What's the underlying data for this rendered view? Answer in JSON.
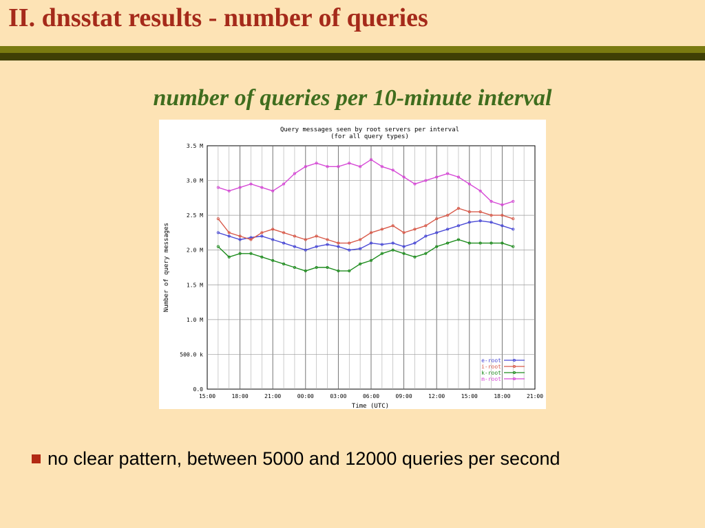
{
  "slide": {
    "title": "II. dnsstat results - number of queries",
    "subtitle": "number of queries per 10-minute interval",
    "bullet": "no clear pattern, between 5000 and 12000 queries per second"
  },
  "colors": {
    "title": "#a52a1a",
    "subtitle": "#3f6d1e",
    "background": "#fde3b5",
    "bullet": "#b22a14"
  },
  "chart_data": {
    "type": "line",
    "title": "Query messages seen by root servers per interval",
    "subtitle": "(for all query types)",
    "xlabel": "Time (UTC)",
    "ylabel": "Number of query messages",
    "x_ticks": [
      "15:00",
      "18:00",
      "21:00",
      "00:00",
      "03:00",
      "06:00",
      "09:00",
      "12:00",
      "15:00",
      "18:00",
      "21:00"
    ],
    "y_ticks": [
      "0.0",
      "500.0 k",
      "1.0 M",
      "1.5 M",
      "2.0 M",
      "2.5 M",
      "3.0 M",
      "3.5 M"
    ],
    "x_unit": "hours since 15:00 UTC",
    "xlim": [
      0,
      30
    ],
    "ylim": [
      0,
      3500000
    ],
    "grid": true,
    "legend_position": "bottom-right",
    "series": [
      {
        "name": "e-root",
        "color": "#4a4ad6",
        "x": [
          1,
          2,
          3,
          4,
          5,
          6,
          7,
          8,
          9,
          10,
          11,
          12,
          13,
          14,
          15,
          16,
          17,
          18,
          19,
          20,
          21,
          22,
          23,
          24,
          25,
          26,
          27,
          28
        ],
        "values": [
          2250000,
          2200000,
          2150000,
          2180000,
          2200000,
          2150000,
          2100000,
          2050000,
          2000000,
          2050000,
          2080000,
          2050000,
          2000000,
          2020000,
          2100000,
          2080000,
          2100000,
          2050000,
          2100000,
          2200000,
          2250000,
          2300000,
          2350000,
          2400000,
          2420000,
          2400000,
          2350000,
          2300000
        ]
      },
      {
        "name": "i-root",
        "color": "#d85a4a",
        "x": [
          1,
          2,
          3,
          4,
          5,
          6,
          7,
          8,
          9,
          10,
          11,
          12,
          13,
          14,
          15,
          16,
          17,
          18,
          19,
          20,
          21,
          22,
          23,
          24,
          25,
          26,
          27,
          28
        ],
        "values": [
          2450000,
          2250000,
          2200000,
          2150000,
          2250000,
          2300000,
          2250000,
          2200000,
          2150000,
          2200000,
          2150000,
          2100000,
          2100000,
          2150000,
          2250000,
          2300000,
          2350000,
          2250000,
          2300000,
          2350000,
          2450000,
          2500000,
          2600000,
          2550000,
          2550000,
          2500000,
          2500000,
          2450000
        ]
      },
      {
        "name": "k-root",
        "color": "#1e8c1e",
        "x": [
          1,
          2,
          3,
          4,
          5,
          6,
          7,
          8,
          9,
          10,
          11,
          12,
          13,
          14,
          15,
          16,
          17,
          18,
          19,
          20,
          21,
          22,
          23,
          24,
          25,
          26,
          27,
          28
        ],
        "values": [
          2050000,
          1900000,
          1950000,
          1950000,
          1900000,
          1850000,
          1800000,
          1750000,
          1700000,
          1750000,
          1750000,
          1700000,
          1700000,
          1800000,
          1850000,
          1950000,
          2000000,
          1950000,
          1900000,
          1950000,
          2050000,
          2100000,
          2150000,
          2100000,
          2100000,
          2100000,
          2100000,
          2050000
        ]
      },
      {
        "name": "m-root",
        "color": "#d64ad6",
        "x": [
          1,
          2,
          3,
          4,
          5,
          6,
          7,
          8,
          9,
          10,
          11,
          12,
          13,
          14,
          15,
          16,
          17,
          18,
          19,
          20,
          21,
          22,
          23,
          24,
          25,
          26,
          27,
          28
        ],
        "values": [
          2900000,
          2850000,
          2900000,
          2950000,
          2900000,
          2850000,
          2950000,
          3100000,
          3200000,
          3250000,
          3200000,
          3200000,
          3250000,
          3200000,
          3300000,
          3200000,
          3150000,
          3050000,
          2950000,
          3000000,
          3050000,
          3100000,
          3050000,
          2950000,
          2850000,
          2700000,
          2650000,
          2700000
        ]
      }
    ]
  }
}
